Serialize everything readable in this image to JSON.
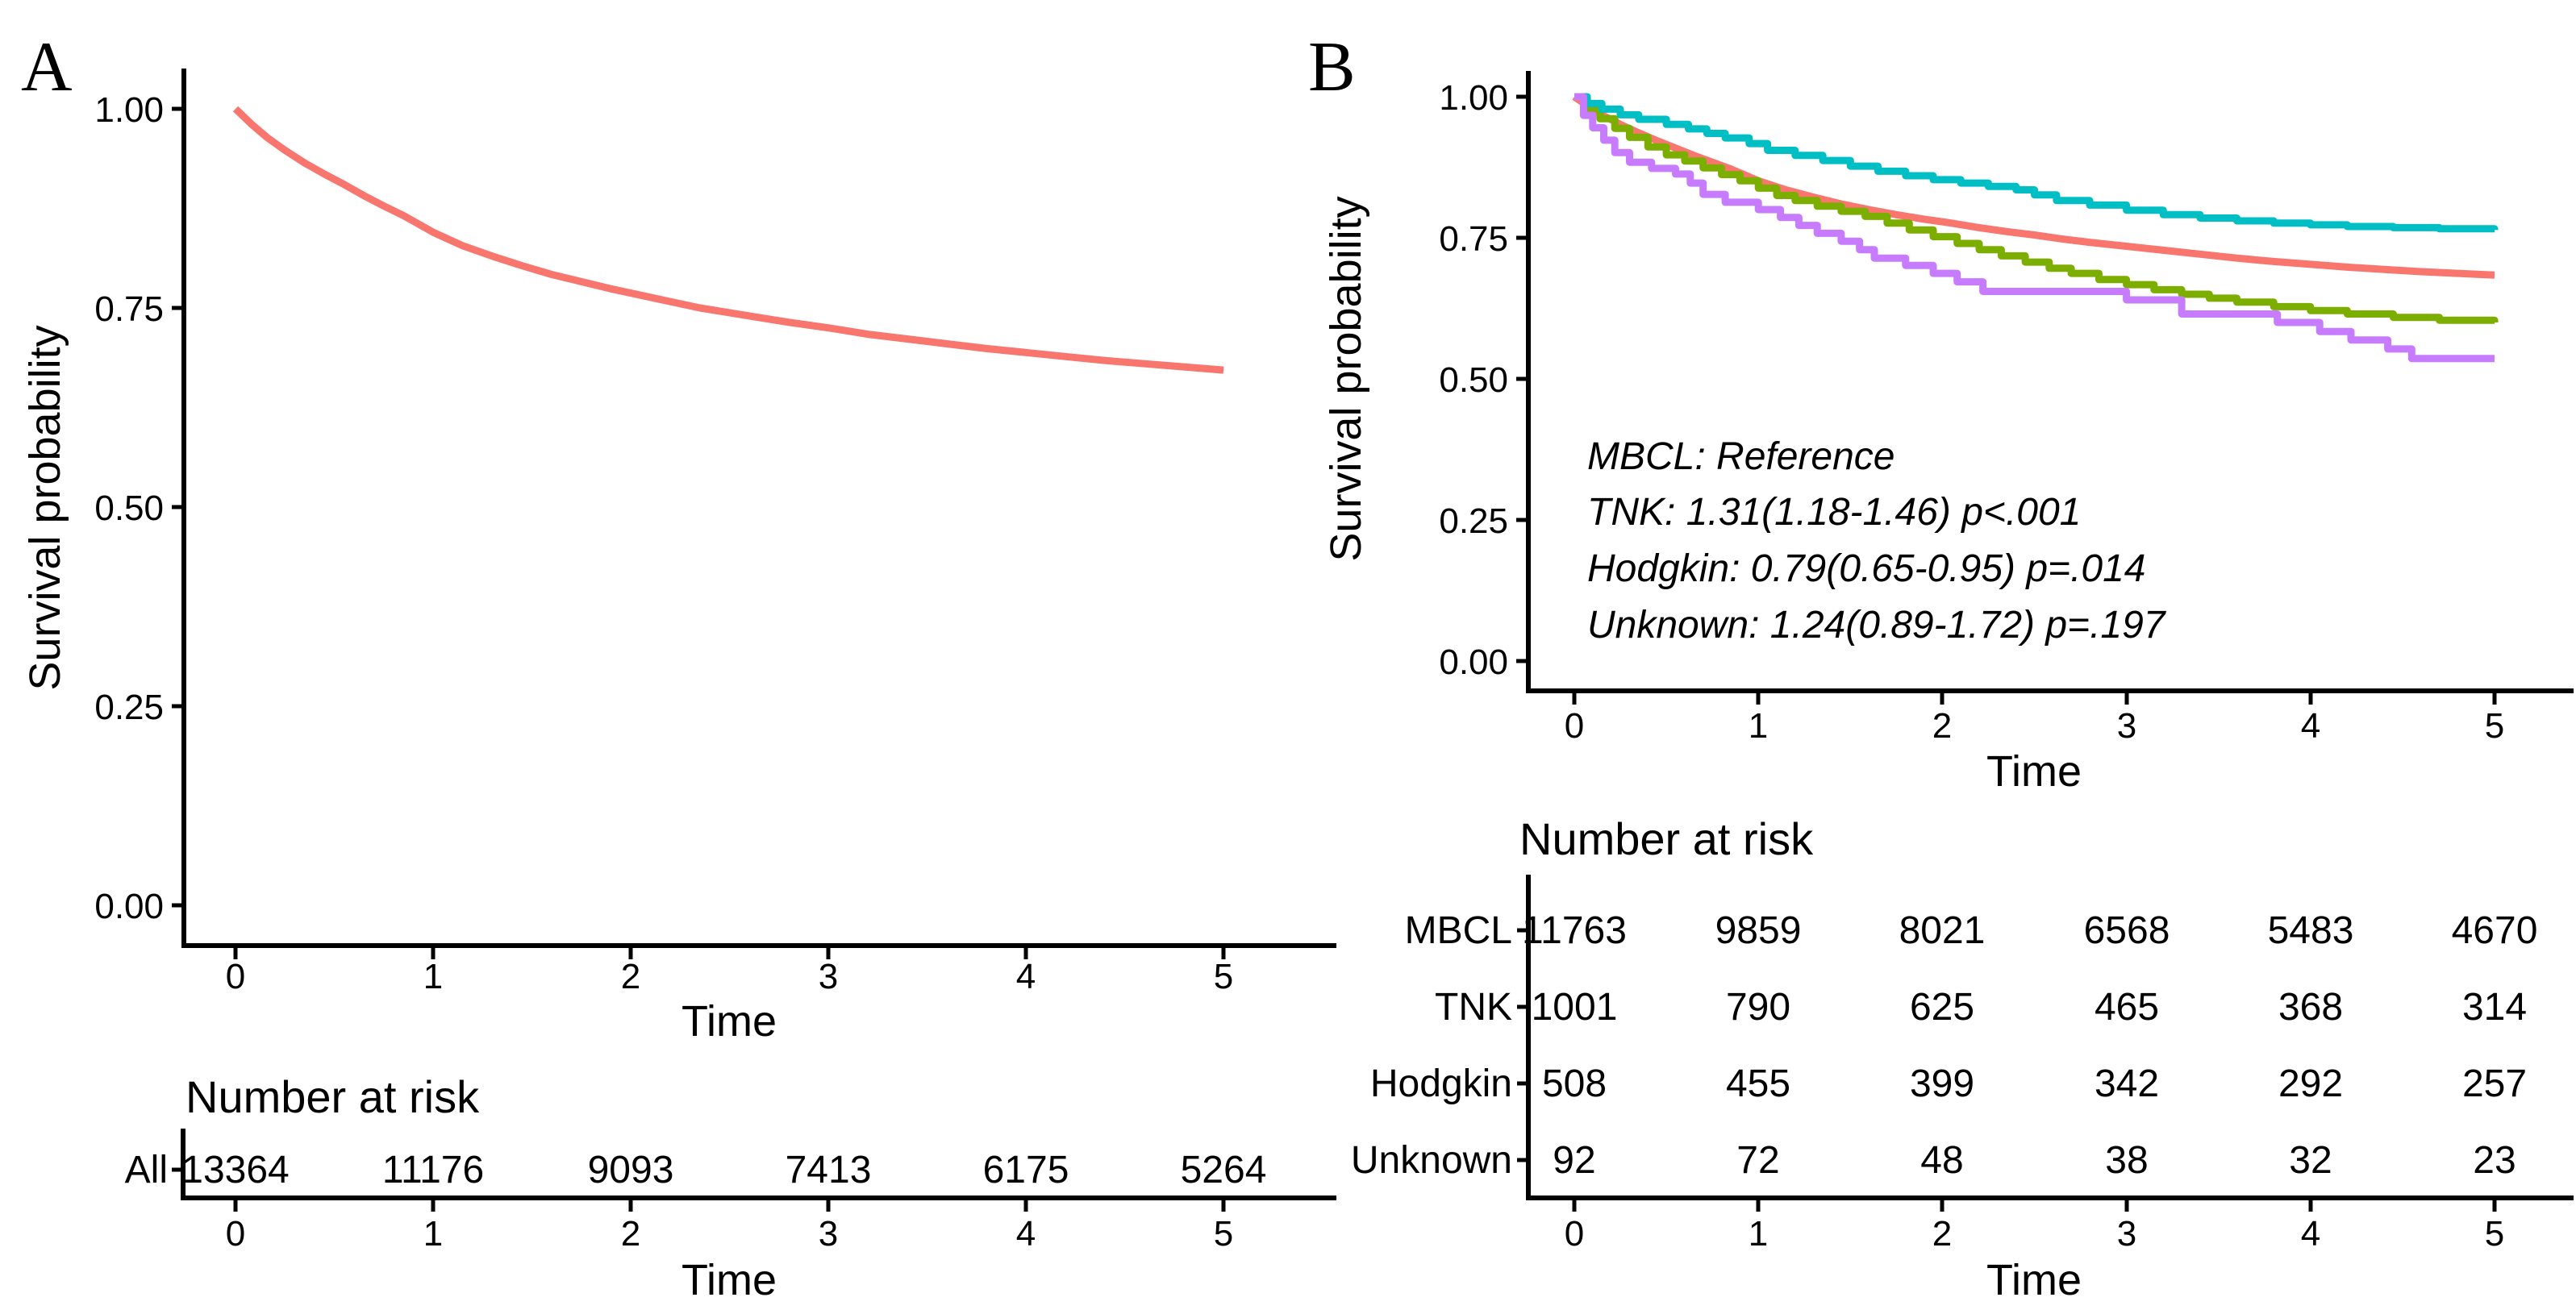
{
  "figure_background": "#ffffff",
  "palette": {
    "salmon": "#F8766D",
    "olive": "#7CAE00",
    "teal": "#00BFC4",
    "purple": "#C77CFF",
    "axis": "#000000"
  },
  "panelA": {
    "label": "A",
    "ylabel": "Survival probability",
    "xlabel": "Time",
    "yticks": [
      "1.00",
      "0.75",
      "0.50",
      "0.25",
      "0.00"
    ],
    "xticks": [
      "0",
      "1",
      "2",
      "3",
      "4",
      "5"
    ],
    "risk": {
      "title": "Number at risk",
      "xlabel": "Time",
      "xticks": [
        "0",
        "1",
        "2",
        "3",
        "4",
        "5"
      ],
      "rows": [
        {
          "label": "All",
          "label_color": "#F8766D",
          "values_color": "#000000",
          "values": [
            "13364",
            "11176",
            "9093",
            "7413",
            "6175",
            "5264"
          ]
        }
      ]
    }
  },
  "panelB": {
    "label": "B",
    "ylabel": "Survival probability",
    "xlabel": "Time",
    "yticks": [
      "1.00",
      "0.75",
      "0.50",
      "0.25",
      "0.00"
    ],
    "xticks": [
      "0",
      "1",
      "2",
      "3",
      "4",
      "5"
    ],
    "annotations": [
      {
        "text": "MBCL: Reference",
        "color": "#F8766D"
      },
      {
        "text": "TNK: 1.31(1.18-1.46) p<.001",
        "color": "#7CAE00"
      },
      {
        "text": "Hodgkin: 0.79(0.65-0.95) p=.014",
        "color": "#00BFC4"
      },
      {
        "text": "Unknown: 1.24(0.89-1.72) p=.197",
        "color": "#C77CFF"
      }
    ],
    "risk": {
      "title": "Number at risk",
      "xlabel": "Time",
      "xticks": [
        "0",
        "1",
        "2",
        "3",
        "4",
        "5"
      ],
      "rows": [
        {
          "label": "MBCL",
          "label_color": "#F8766D",
          "values_color": "#F8766D",
          "values": [
            "11763",
            "9859",
            "8021",
            "6568",
            "5483",
            "4670"
          ]
        },
        {
          "label": "TNK",
          "label_color": "#7CAE00",
          "values_color": "#7CAE00",
          "values": [
            "1001",
            "790",
            "625",
            "465",
            "368",
            "314"
          ]
        },
        {
          "label": "Hodgkin",
          "label_color": "#00BFC4",
          "values_color": "#00BFC4",
          "values": [
            "508",
            "455",
            "399",
            "342",
            "292",
            "257"
          ]
        },
        {
          "label": "Unknown",
          "label_color": "#C77CFF",
          "values_color": "#C77CFF",
          "values": [
            "92",
            "72",
            "48",
            "38",
            "32",
            "23"
          ]
        }
      ]
    }
  },
  "chart_data": [
    {
      "panel": "A",
      "type": "line",
      "title": "",
      "xlabel": "Time",
      "ylabel": "Survival probability",
      "xlim": [
        0,
        5
      ],
      "ylim": [
        0,
        1
      ],
      "xticks": [
        0,
        1,
        2,
        3,
        4,
        5
      ],
      "yticks": [
        1.0,
        0.75,
        0.5,
        0.25,
        0.0
      ],
      "grid": false,
      "legend_position": "none",
      "series": [
        {
          "name": "All",
          "color": "#F8766D",
          "step": false,
          "points": [
            [
              0,
              1.0
            ],
            [
              0.08,
              0.981
            ],
            [
              0.16,
              0.964
            ],
            [
              0.25,
              0.948
            ],
            [
              0.35,
              0.932
            ],
            [
              0.45,
              0.918
            ],
            [
              0.55,
              0.905
            ],
            [
              0.65,
              0.891
            ],
            [
              0.75,
              0.878
            ],
            [
              0.85,
              0.866
            ],
            [
              1.0,
              0.845
            ],
            [
              1.15,
              0.828
            ],
            [
              1.3,
              0.815
            ],
            [
              1.45,
              0.803
            ],
            [
              1.6,
              0.792
            ],
            [
              1.75,
              0.783
            ],
            [
              1.9,
              0.774
            ],
            [
              2.05,
              0.766
            ],
            [
              2.2,
              0.758
            ],
            [
              2.35,
              0.75
            ],
            [
              2.5,
              0.744
            ],
            [
              2.65,
              0.738
            ],
            [
              2.8,
              0.732
            ],
            [
              3.0,
              0.725
            ],
            [
              3.2,
              0.717
            ],
            [
              3.4,
              0.711
            ],
            [
              3.6,
              0.705
            ],
            [
              3.8,
              0.699
            ],
            [
              4.0,
              0.694
            ],
            [
              4.2,
              0.689
            ],
            [
              4.4,
              0.684
            ],
            [
              4.6,
              0.68
            ],
            [
              4.8,
              0.676
            ],
            [
              5.0,
              0.672
            ]
          ]
        }
      ]
    },
    {
      "panel": "B",
      "type": "line",
      "title": "",
      "xlabel": "Time",
      "ylabel": "Survival probability",
      "xlim": [
        0,
        5
      ],
      "ylim": [
        0,
        1
      ],
      "xticks": [
        0,
        1,
        2,
        3,
        4,
        5
      ],
      "yticks": [
        1.0,
        0.75,
        0.5,
        0.25,
        0.0
      ],
      "grid": false,
      "legend_position": "none",
      "series": [
        {
          "name": "MBCL",
          "color": "#F8766D",
          "step": false,
          "points": [
            [
              0,
              1.0
            ],
            [
              0.08,
              0.982
            ],
            [
              0.16,
              0.966
            ],
            [
              0.25,
              0.951
            ],
            [
              0.35,
              0.936
            ],
            [
              0.45,
              0.922
            ],
            [
              0.55,
              0.909
            ],
            [
              0.65,
              0.896
            ],
            [
              0.75,
              0.884
            ],
            [
              0.85,
              0.872
            ],
            [
              1.0,
              0.851
            ],
            [
              1.15,
              0.835
            ],
            [
              1.3,
              0.822
            ],
            [
              1.45,
              0.81
            ],
            [
              1.6,
              0.8
            ],
            [
              1.75,
              0.791
            ],
            [
              1.9,
              0.783
            ],
            [
              2.05,
              0.776
            ],
            [
              2.2,
              0.768
            ],
            [
              2.35,
              0.761
            ],
            [
              2.5,
              0.755
            ],
            [
              2.65,
              0.748
            ],
            [
              2.8,
              0.742
            ],
            [
              3.0,
              0.735
            ],
            [
              3.2,
              0.728
            ],
            [
              3.4,
              0.721
            ],
            [
              3.6,
              0.714
            ],
            [
              3.8,
              0.708
            ],
            [
              4.0,
              0.703
            ],
            [
              4.2,
              0.698
            ],
            [
              4.4,
              0.694
            ],
            [
              4.6,
              0.69
            ],
            [
              4.8,
              0.687
            ],
            [
              5.0,
              0.684
            ]
          ]
        },
        {
          "name": "TNK",
          "color": "#7CAE00",
          "step": true,
          "points": [
            [
              0,
              1.0
            ],
            [
              0.07,
              0.979
            ],
            [
              0.14,
              0.961
            ],
            [
              0.22,
              0.944
            ],
            [
              0.3,
              0.928
            ],
            [
              0.4,
              0.911
            ],
            [
              0.5,
              0.897
            ],
            [
              0.6,
              0.886
            ],
            [
              0.7,
              0.874
            ],
            [
              0.8,
              0.862
            ],
            [
              0.9,
              0.851
            ],
            [
              1.0,
              0.838
            ],
            [
              1.1,
              0.825
            ],
            [
              1.2,
              0.816
            ],
            [
              1.32,
              0.806
            ],
            [
              1.45,
              0.797
            ],
            [
              1.58,
              0.788
            ],
            [
              1.7,
              0.776
            ],
            [
              1.82,
              0.764
            ],
            [
              1.95,
              0.752
            ],
            [
              2.08,
              0.74
            ],
            [
              2.2,
              0.729
            ],
            [
              2.32,
              0.718
            ],
            [
              2.45,
              0.707
            ],
            [
              2.58,
              0.696
            ],
            [
              2.7,
              0.687
            ],
            [
              2.85,
              0.676
            ],
            [
              3.0,
              0.667
            ],
            [
              3.15,
              0.658
            ],
            [
              3.3,
              0.65
            ],
            [
              3.45,
              0.643
            ],
            [
              3.6,
              0.636
            ],
            [
              3.8,
              0.628
            ],
            [
              4.0,
              0.621
            ],
            [
              4.2,
              0.615
            ],
            [
              4.45,
              0.609
            ],
            [
              4.7,
              0.604
            ],
            [
              5.0,
              0.6
            ]
          ]
        },
        {
          "name": "Hodgkin",
          "color": "#00BFC4",
          "step": true,
          "points": [
            [
              0,
              1.0
            ],
            [
              0.07,
              0.988
            ],
            [
              0.15,
              0.978
            ],
            [
              0.25,
              0.968
            ],
            [
              0.35,
              0.96
            ],
            [
              0.5,
              0.951
            ],
            [
              0.62,
              0.943
            ],
            [
              0.72,
              0.935
            ],
            [
              0.82,
              0.927
            ],
            [
              0.95,
              0.917
            ],
            [
              1.05,
              0.905
            ],
            [
              1.2,
              0.896
            ],
            [
              1.35,
              0.887
            ],
            [
              1.5,
              0.877
            ],
            [
              1.65,
              0.868
            ],
            [
              1.8,
              0.86
            ],
            [
              1.95,
              0.853
            ],
            [
              2.1,
              0.847
            ],
            [
              2.25,
              0.841
            ],
            [
              2.4,
              0.835
            ],
            [
              2.5,
              0.826
            ],
            [
              2.62,
              0.816
            ],
            [
              2.8,
              0.808
            ],
            [
              3.0,
              0.799
            ],
            [
              3.2,
              0.791
            ],
            [
              3.4,
              0.785
            ],
            [
              3.6,
              0.78
            ],
            [
              3.8,
              0.776
            ],
            [
              4.0,
              0.773
            ],
            [
              4.2,
              0.77
            ],
            [
              4.45,
              0.768
            ],
            [
              4.7,
              0.766
            ],
            [
              5.0,
              0.764
            ]
          ]
        },
        {
          "name": "Unknown",
          "color": "#C77CFF",
          "step": true,
          "points": [
            [
              0,
              1.0
            ],
            [
              0.05,
              0.967
            ],
            [
              0.1,
              0.945
            ],
            [
              0.16,
              0.923
            ],
            [
              0.22,
              0.901
            ],
            [
              0.3,
              0.884
            ],
            [
              0.42,
              0.873
            ],
            [
              0.55,
              0.863
            ],
            [
              0.63,
              0.847
            ],
            [
              0.7,
              0.827
            ],
            [
              0.82,
              0.813
            ],
            [
              1.0,
              0.8
            ],
            [
              1.12,
              0.786
            ],
            [
              1.22,
              0.772
            ],
            [
              1.32,
              0.758
            ],
            [
              1.45,
              0.744
            ],
            [
              1.55,
              0.729
            ],
            [
              1.63,
              0.714
            ],
            [
              1.8,
              0.701
            ],
            [
              1.95,
              0.687
            ],
            [
              2.08,
              0.672
            ],
            [
              2.22,
              0.655
            ],
            [
              3.0,
              0.64
            ],
            [
              3.3,
              0.615
            ],
            [
              3.82,
              0.6
            ],
            [
              4.05,
              0.584
            ],
            [
              4.22,
              0.569
            ],
            [
              4.42,
              0.553
            ],
            [
              4.55,
              0.536
            ],
            [
              5.0,
              0.536
            ]
          ]
        }
      ]
    }
  ]
}
